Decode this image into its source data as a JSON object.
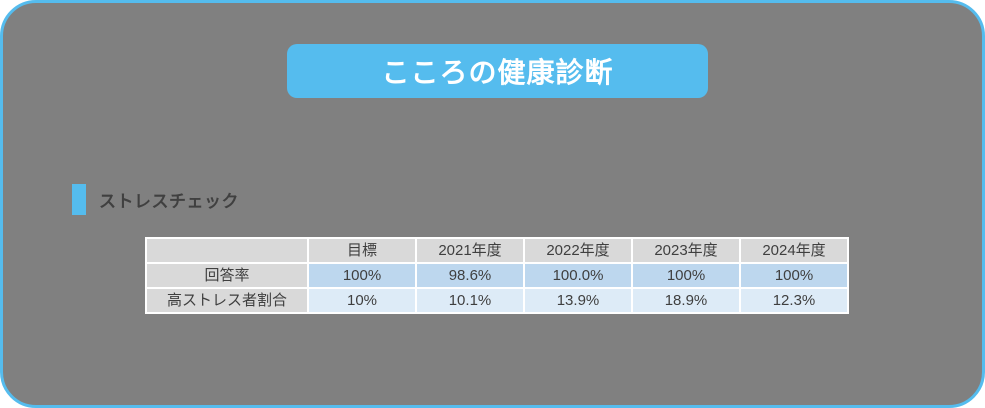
{
  "title": "こころの健康診断",
  "section": {
    "label": "ストレスチェック"
  },
  "table": {
    "columns": [
      "",
      "目標",
      "2021年度",
      "2022年度",
      "2023年度",
      "2024年度"
    ],
    "rows": [
      {
        "label": "回答率",
        "values": [
          "100%",
          "98.6%",
          "100.0%",
          "100%",
          "100%"
        ]
      },
      {
        "label": "高ストレス者割合",
        "values": [
          "10%",
          "10.1%",
          "13.9%",
          "18.9%",
          "12.3%"
        ]
      }
    ]
  },
  "chart_data": {
    "type": "table",
    "title": "ストレスチェック",
    "columns": [
      "目標",
      "2021年度",
      "2022年度",
      "2023年度",
      "2024年度"
    ],
    "series": [
      {
        "name": "回答率",
        "values": [
          "100%",
          "98.6%",
          "100.0%",
          "100%",
          "100%"
        ]
      },
      {
        "name": "高ストレス者割合",
        "values": [
          "10%",
          "10.1%",
          "13.9%",
          "18.9%",
          "12.3%"
        ]
      }
    ]
  },
  "colors": {
    "panel_bg": "#808080",
    "accent_blue": "#55bcee",
    "table_header_bg": "#d9d9d9",
    "table_row1_bg": "#bdd7ee",
    "table_row2_bg": "#ddebf7",
    "table_text": "#3f3f3f",
    "title_text": "#ffffff"
  }
}
